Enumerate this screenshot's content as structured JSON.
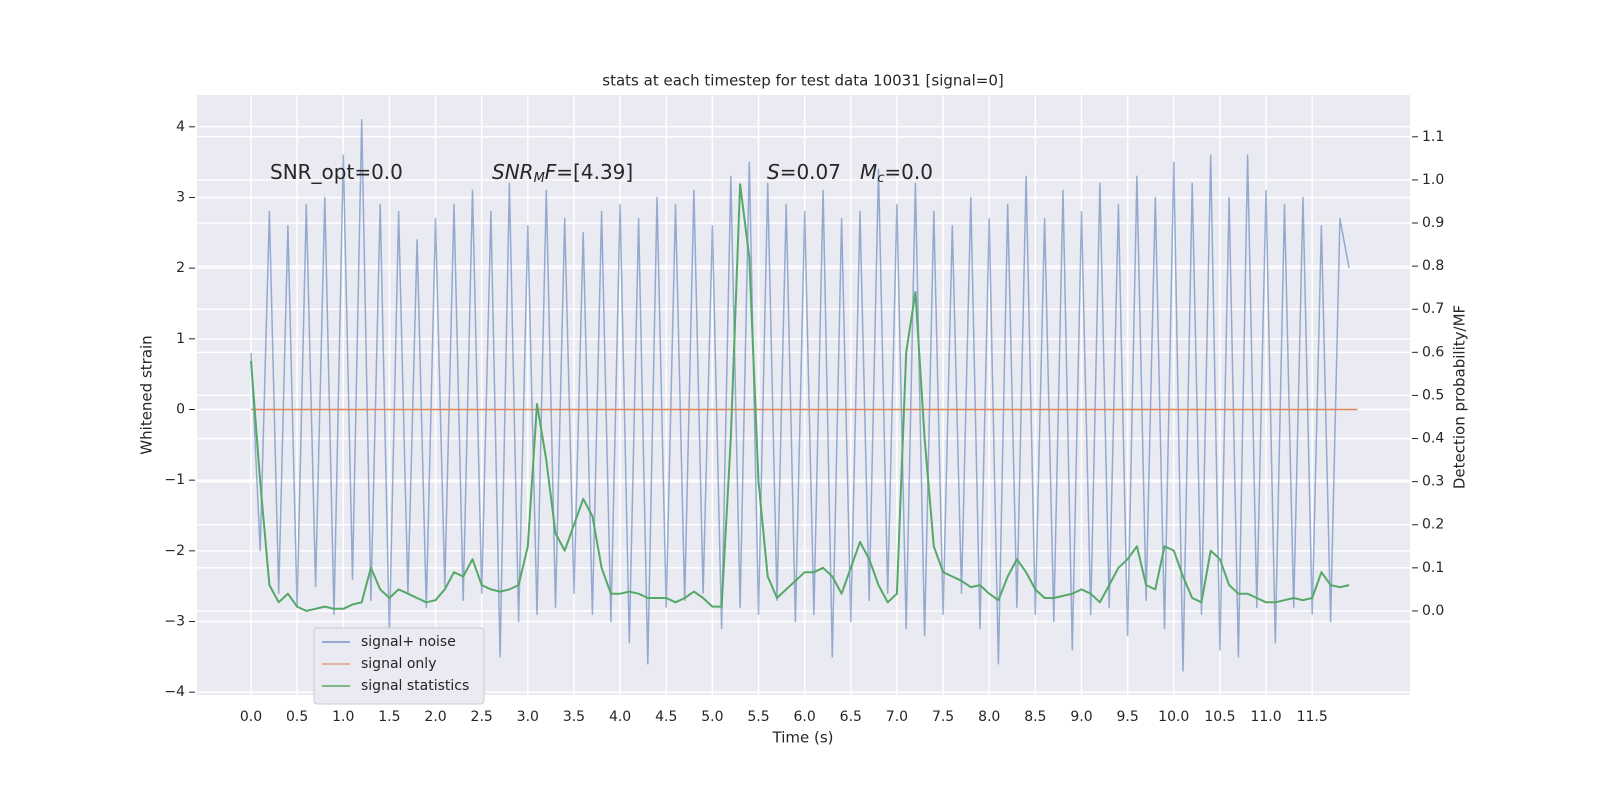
{
  "chart_data": {
    "type": "line",
    "title": "stats at each timestep for test data 10031 [signal=0]",
    "xlabel": "Time (s)",
    "ylabel": "Whitened strain",
    "y2label": "Detection probability/MF",
    "annotations": [
      {
        "parts": [
          {
            "text": "SNR_opt=0.0",
            "style": "normal"
          }
        ]
      },
      {
        "parts": [
          {
            "text": "SNR",
            "style": "italic"
          },
          {
            "text": "M",
            "style": "sub"
          },
          {
            "text": "F",
            "style": "italic"
          },
          {
            "text": "=[4.39]",
            "style": "normal"
          }
        ]
      },
      {
        "parts": [
          {
            "text": "S",
            "style": "italic"
          },
          {
            "text": "=0.07",
            "style": "normal"
          }
        ]
      },
      {
        "parts": [
          {
            "text": "M",
            "style": "italic"
          },
          {
            "text": "c",
            "style": "sub"
          },
          {
            "text": "=0.0",
            "style": "normal"
          }
        ]
      }
    ],
    "x": [
      0.0,
      0.1,
      0.2,
      0.3,
      0.4,
      0.5,
      0.6,
      0.7,
      0.8,
      0.9,
      1.0,
      1.1,
      1.2,
      1.3,
      1.4,
      1.5,
      1.6,
      1.7,
      1.8,
      1.9,
      2.0,
      2.1,
      2.2,
      2.3,
      2.4,
      2.5,
      2.6,
      2.7,
      2.8,
      2.9,
      3.0,
      3.1,
      3.2,
      3.3,
      3.4,
      3.5,
      3.6,
      3.7,
      3.8,
      3.9,
      4.0,
      4.1,
      4.2,
      4.3,
      4.4,
      4.5,
      4.6,
      4.7,
      4.8,
      4.9,
      5.0,
      5.1,
      5.2,
      5.3,
      5.4,
      5.5,
      5.6,
      5.7,
      5.8,
      5.9,
      6.0,
      6.1,
      6.2,
      6.3,
      6.4,
      6.5,
      6.6,
      6.7,
      6.8,
      6.9,
      7.0,
      7.1,
      7.2,
      7.3,
      7.4,
      7.5,
      7.6,
      7.7,
      7.8,
      7.9,
      8.0,
      8.1,
      8.2,
      8.3,
      8.4,
      8.5,
      8.6,
      8.7,
      8.8,
      8.9,
      9.0,
      9.1,
      9.2,
      9.3,
      9.4,
      9.5,
      9.6,
      9.7,
      9.8,
      9.9,
      10.0,
      10.1,
      10.2,
      10.3,
      10.4,
      10.5,
      10.6,
      10.7,
      10.8,
      10.9,
      11.0,
      11.1,
      11.2,
      11.3,
      11.4,
      11.5,
      11.6,
      11.7,
      11.8,
      11.9
    ],
    "series": [
      {
        "name": "signal+ noise",
        "color": "#4c72b0",
        "axis": "y",
        "values": [
          0.8,
          -2.0,
          2.8,
          -2.6,
          2.6,
          -2.8,
          2.9,
          -2.5,
          3.0,
          -2.9,
          3.6,
          -2.4,
          4.1,
          -2.7,
          2.9,
          -3.2,
          2.8,
          -2.6,
          2.4,
          -2.8,
          2.7,
          -2.5,
          2.9,
          -2.7,
          3.1,
          -2.6,
          2.8,
          -3.5,
          3.2,
          -3.0,
          2.6,
          -2.9,
          3.1,
          -2.8,
          2.7,
          -2.6,
          2.5,
          -2.9,
          2.8,
          -3.0,
          2.9,
          -3.3,
          2.7,
          -3.6,
          3.0,
          -2.8,
          2.9,
          -2.7,
          3.1,
          -2.6,
          2.6,
          -3.1,
          3.3,
          -2.8,
          3.5,
          -2.9,
          3.2,
          -2.7,
          2.9,
          -3.0,
          2.8,
          -2.9,
          3.1,
          -3.5,
          2.7,
          -3.0,
          2.8,
          -2.7,
          3.4,
          -2.6,
          2.9,
          -3.1,
          3.2,
          -3.2,
          2.8,
          -2.9,
          2.6,
          -2.6,
          3.0,
          -3.1,
          2.7,
          -3.6,
          2.9,
          -2.8,
          3.3,
          -2.9,
          2.7,
          -3.0,
          3.1,
          -3.4,
          2.8,
          -2.9,
          3.2,
          -2.8,
          2.9,
          -3.2,
          3.3,
          -2.7,
          3.0,
          -3.1,
          3.5,
          -3.7,
          3.2,
          -2.9,
          3.6,
          -3.4,
          3.0,
          -3.5,
          3.6,
          -2.8,
          3.1,
          -3.3,
          2.9,
          -2.8,
          3.0,
          -2.9,
          2.6,
          -3.0,
          2.7,
          2.0
        ]
      },
      {
        "name": "signal only",
        "color": "#dd8452",
        "axis": "y",
        "x": [
          0,
          11.99
        ],
        "values": [
          0,
          0
        ]
      },
      {
        "name": "signal statistics",
        "color": "#55a868",
        "axis": "y2",
        "values": [
          0.58,
          0.3,
          0.06,
          0.02,
          0.04,
          0.01,
          0.0,
          0.005,
          0.01,
          0.005,
          0.005,
          0.015,
          0.02,
          0.1,
          0.05,
          0.03,
          0.05,
          0.04,
          0.03,
          0.02,
          0.025,
          0.05,
          0.09,
          0.08,
          0.12,
          0.06,
          0.05,
          0.045,
          0.05,
          0.06,
          0.15,
          0.48,
          0.35,
          0.18,
          0.14,
          0.2,
          0.26,
          0.22,
          0.1,
          0.04,
          0.04,
          0.045,
          0.04,
          0.03,
          0.03,
          0.03,
          0.02,
          0.03,
          0.045,
          0.03,
          0.01,
          0.01,
          0.4,
          0.99,
          0.82,
          0.3,
          0.08,
          0.03,
          0.05,
          0.07,
          0.09,
          0.09,
          0.1,
          0.08,
          0.04,
          0.1,
          0.16,
          0.12,
          0.06,
          0.02,
          0.04,
          0.6,
          0.74,
          0.4,
          0.15,
          0.09,
          0.08,
          0.07,
          0.055,
          0.06,
          0.04,
          0.025,
          0.08,
          0.12,
          0.09,
          0.05,
          0.03,
          0.03,
          0.035,
          0.04,
          0.05,
          0.04,
          0.02,
          0.06,
          0.1,
          0.12,
          0.15,
          0.06,
          0.05,
          0.15,
          0.14,
          0.08,
          0.03,
          0.02,
          0.14,
          0.12,
          0.06,
          0.04,
          0.04,
          0.03,
          0.02,
          0.02,
          0.025,
          0.03,
          0.025,
          0.03,
          0.09,
          0.06,
          0.055,
          0.06
        ]
      }
    ],
    "xlim": [
      -0.585,
      12.56
    ],
    "xticks": [
      {
        "value": 0,
        "label": "0.0"
      },
      0.5,
      {
        "value": 1,
        "label": "1.0"
      },
      1.5,
      {
        "value": 2,
        "label": "2.0"
      },
      2.5,
      {
        "value": 3,
        "label": "3.0"
      },
      3.5,
      {
        "value": 4,
        "label": "4.0"
      },
      4.5,
      {
        "value": 5,
        "label": "5.0"
      },
      5.5,
      {
        "value": 6,
        "label": "6.0"
      },
      6.5,
      {
        "value": 7,
        "label": "7.0"
      },
      7.5,
      {
        "value": 8,
        "label": "8.0"
      },
      8.5,
      {
        "value": 9,
        "label": "9.0"
      },
      9.5,
      {
        "value": 10,
        "label": "10.0"
      },
      10.5,
      {
        "value": 11,
        "label": "11.0"
      },
      11.5
    ],
    "ylim": [
      -4.04,
      4.45
    ],
    "yticks": [
      {
        "value": -4,
        "label": "−4"
      },
      {
        "value": -3,
        "label": "−3"
      },
      {
        "value": -2,
        "label": "−2"
      },
      {
        "value": -1,
        "label": "−1"
      },
      0,
      1,
      2,
      3,
      4
    ],
    "y2lim": [
      -0.195,
      1.197
    ],
    "y2ticks": [
      {
        "value": 0,
        "label": "0.0"
      },
      0.1,
      0.2,
      0.3,
      0.4,
      0.5,
      0.6,
      0.7,
      0.8,
      0.9,
      {
        "value": 1,
        "label": "1.0"
      },
      1.1
    ],
    "grid": true,
    "legend": "lower left"
  }
}
